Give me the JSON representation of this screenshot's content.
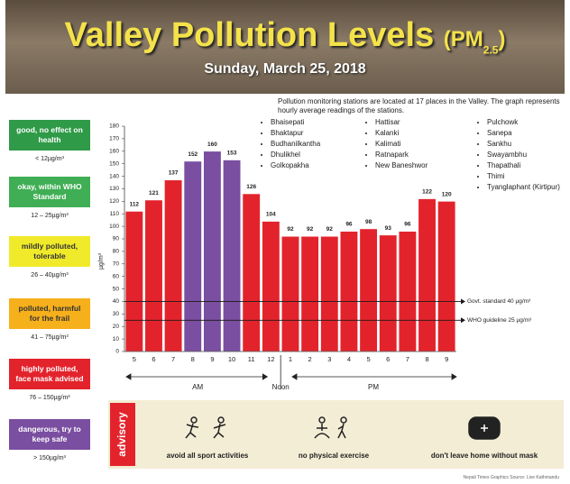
{
  "header": {
    "title": "Valley Pollution Levels",
    "title_unit": "(PM",
    "title_unit_sub": "2.5",
    "title_unit_close": ")",
    "subtitle": "Sunday, March 25, 2018"
  },
  "note": "Pollution monitoring stations are located at 17 places in the Valley. The graph represents hourly average readings of the stations.",
  "stations": [
    [
      "Bhaisepati",
      "Bhaktapur",
      "Budhanilkantha",
      "Dhulikhel",
      "Golkopakha"
    ],
    [
      "Hattisar",
      "Kalanki",
      "Kalimati",
      "Ratnapark",
      "New Baneshwor"
    ],
    [
      "Pulchowk",
      "Sanepa",
      "Sankhu",
      "Swayambhu",
      "Thapathali",
      "Thimi",
      "Tyanglaphant (Kirtipur)"
    ]
  ],
  "legend": [
    {
      "label": "good, no effect on health",
      "range": "< 12µg/m³",
      "color": "#2f9a48",
      "text_color": "#ffffff"
    },
    {
      "label": "okay, within WHO Standard",
      "range": "12 – 25µg/m³",
      "color": "#3fae54",
      "text_color": "#ffffff"
    },
    {
      "label": "mildly polluted, tolerable",
      "range": "26 – 40µg/m³",
      "color": "#f1ea2a",
      "text_color": "#333333"
    },
    {
      "label": "polluted, harmful for the frail",
      "range": "41 – 75µg/m³",
      "color": "#f6b01c",
      "text_color": "#333333"
    },
    {
      "label": "highly polluted, face mask advised",
      "range": "76 – 150µg/m³",
      "color": "#e3232c",
      "text_color": "#ffffff"
    },
    {
      "label": "dangerous, try to keep safe",
      "range": "> 150µg/m³",
      "color": "#7a4ea0",
      "text_color": "#ffffff"
    }
  ],
  "chart_data": {
    "type": "bar",
    "categories": [
      "5",
      "6",
      "7",
      "8",
      "9",
      "10",
      "11",
      "12",
      "1",
      "2",
      "3",
      "4",
      "5",
      "6",
      "7",
      "8",
      "9"
    ],
    "values": [
      112,
      121,
      137,
      152,
      160,
      153,
      126,
      104,
      92,
      92,
      92,
      96,
      98,
      93,
      96,
      122,
      120
    ],
    "colors": [
      "#e3232c",
      "#e3232c",
      "#e3232c",
      "#7a4ea0",
      "#7a4ea0",
      "#7a4ea0",
      "#e3232c",
      "#e3232c",
      "#e3232c",
      "#e3232c",
      "#e3232c",
      "#e3232c",
      "#e3232c",
      "#e3232c",
      "#e3232c",
      "#e3232c",
      "#e3232c"
    ],
    "ylim": [
      0,
      180
    ],
    "yticks": [
      0,
      10,
      20,
      30,
      40,
      50,
      60,
      70,
      80,
      90,
      100,
      110,
      120,
      130,
      140,
      150,
      160,
      170,
      180
    ],
    "ylabel": "µg/m³",
    "reference_lines": [
      {
        "value": 40,
        "label": "Govt. standard 40 µg/m³"
      },
      {
        "value": 25,
        "label": "WHO guideline 25 µg/m³"
      }
    ],
    "periods": [
      "AM",
      "Noon",
      "PM"
    ]
  },
  "advisory": {
    "title": "advisory",
    "items": [
      "avoid all sport activities",
      "no physical exercise",
      "don't leave home without mask"
    ]
  },
  "footer": "Nepali Times Graphics   Source: Live Kathmandu"
}
